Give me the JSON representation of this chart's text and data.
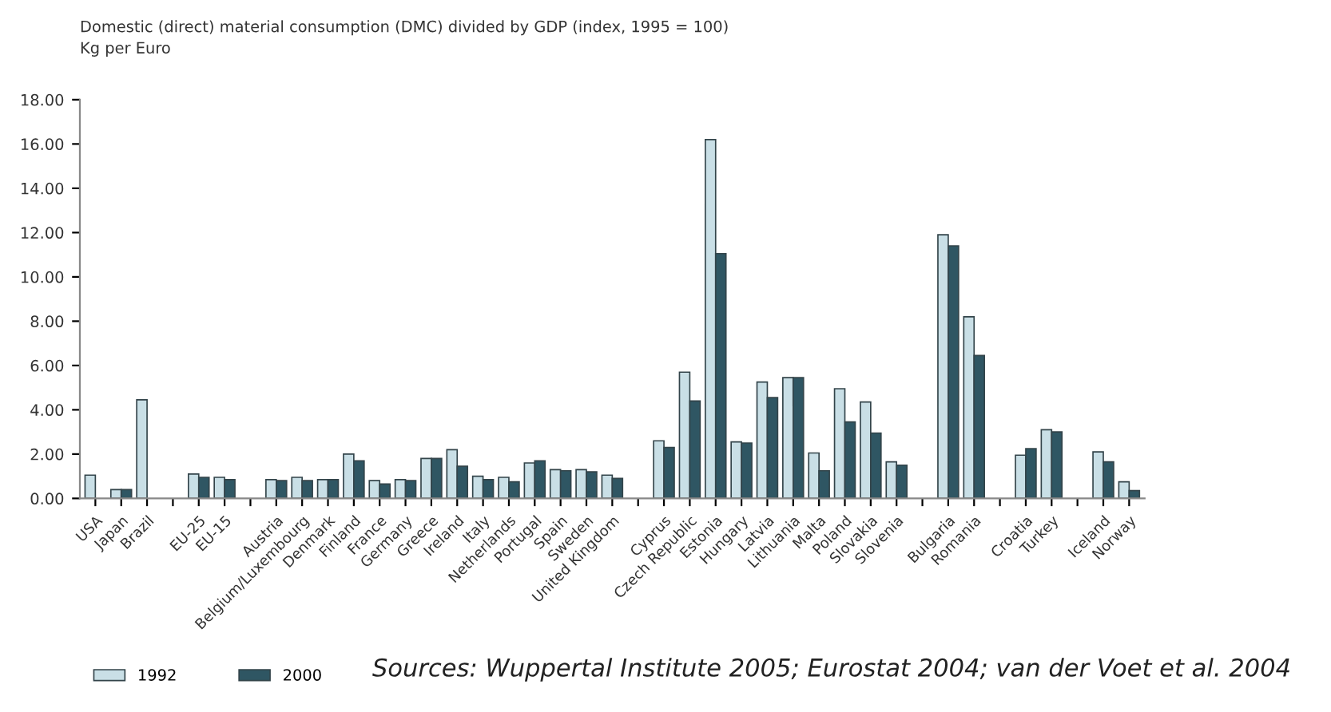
{
  "chart_data": {
    "type": "bar",
    "title": "Domestic (direct) material consumption (DMC) divided by GDP (index, 1995 = 100)",
    "ylabel": "Kg per Euro",
    "categories": [
      "USA",
      "Japan",
      "Brazil",
      null,
      "EU-25",
      "EU-15",
      null,
      "Austria",
      "Belgium/Luxembourg",
      "Denmark",
      "Finland",
      "France",
      "Germany",
      "Greece",
      "Ireland",
      "Italy",
      "Netherlands",
      "Portugal",
      "Spain",
      "Sweden",
      "United Kingdom",
      null,
      "Cyprus",
      "Czech Republic",
      "Estonia",
      "Hungary",
      "Latvia",
      "Lithuania",
      "Malta",
      "Poland",
      "Slovakia",
      "Slovenia",
      null,
      "Bulgaria",
      "Romania",
      null,
      "Croatia",
      "Turkey",
      null,
      "Iceland",
      "Norway"
    ],
    "series": [
      {
        "name": "1992",
        "color": "#c9dfe6",
        "values": [
          1.05,
          0.4,
          4.45,
          null,
          1.1,
          0.95,
          null,
          0.85,
          0.95,
          0.85,
          2.0,
          0.8,
          0.85,
          1.8,
          2.2,
          1.0,
          0.95,
          1.6,
          1.3,
          1.3,
          1.05,
          null,
          2.6,
          5.7,
          16.2,
          2.55,
          5.25,
          5.45,
          2.05,
          4.95,
          4.35,
          1.65,
          null,
          11.9,
          8.2,
          null,
          1.95,
          3.1,
          null,
          2.1,
          0.75
        ]
      },
      {
        "name": "2000",
        "color": "#2f5663",
        "values": [
          null,
          0.4,
          null,
          null,
          0.95,
          0.85,
          null,
          0.8,
          0.8,
          0.85,
          1.7,
          0.65,
          0.8,
          1.8,
          1.45,
          0.85,
          0.75,
          1.7,
          1.25,
          1.2,
          0.9,
          null,
          2.3,
          4.4,
          11.05,
          2.5,
          4.55,
          5.45,
          1.25,
          3.45,
          2.95,
          1.5,
          null,
          11.4,
          6.45,
          null,
          2.25,
          3.0,
          null,
          1.65,
          0.35
        ]
      }
    ],
    "ylim": [
      0,
      18
    ],
    "yticks": [
      {
        "value": 0,
        "label": "0.00"
      },
      {
        "value": 2,
        "label": "2.00"
      },
      {
        "value": 4,
        "label": "4.00"
      },
      {
        "value": 6,
        "label": "6.00"
      },
      {
        "value": 8,
        "label": "8.00"
      },
      {
        "value": 10,
        "label": "10.00"
      },
      {
        "value": 12,
        "label": "12.00"
      },
      {
        "value": 14,
        "label": "14.00"
      },
      {
        "value": 16,
        "label": "16.00"
      },
      {
        "value": 18,
        "label": "18.00"
      }
    ],
    "legend": "bottom left",
    "grid": false,
    "annotations": [
      "Sources: Wuppertal Institute 2005; Eurostat 2004; van der Voet et al. 2004"
    ]
  }
}
